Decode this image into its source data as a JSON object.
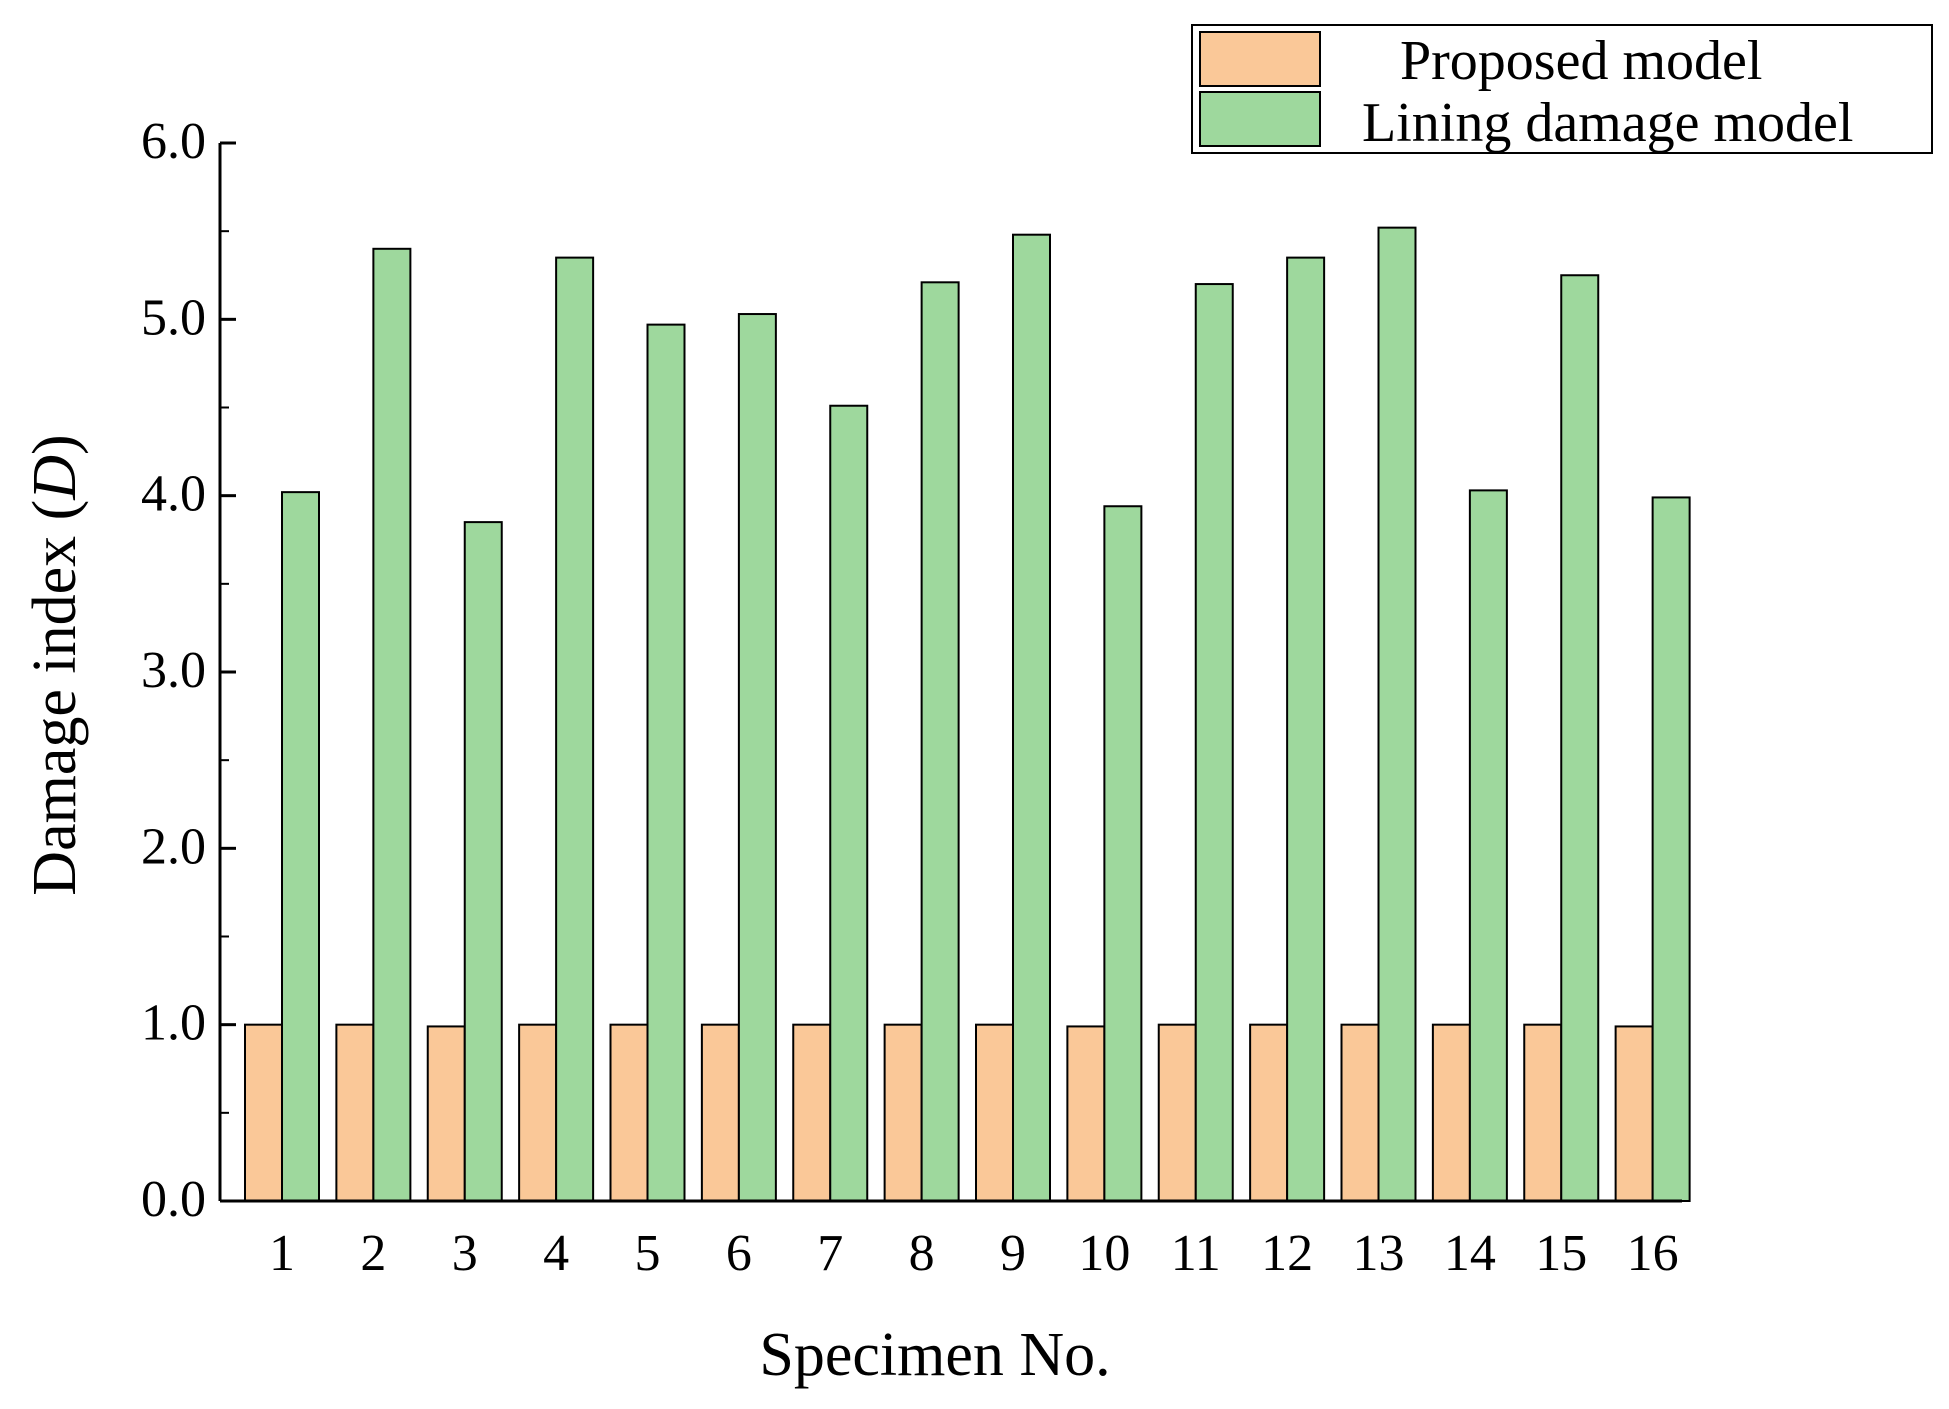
{
  "chart_data": {
    "type": "bar",
    "xlabel": "Specimen No.",
    "ylabel": {
      "prefix": "Damage index (",
      "symbol": "D",
      "suffix": ")"
    },
    "ylim": [
      0,
      6
    ],
    "yticks": [
      "0.0",
      "1.0",
      "2.0",
      "3.0",
      "4.0",
      "5.0",
      "6.0"
    ],
    "categories": [
      "1",
      "2",
      "3",
      "4",
      "5",
      "6",
      "7",
      "8",
      "9",
      "10",
      "11",
      "12",
      "13",
      "14",
      "15",
      "16"
    ],
    "series": [
      {
        "name": "Proposed model",
        "color": "#FAC898",
        "values": [
          1.0,
          1.0,
          0.99,
          1.0,
          1.0,
          1.0,
          1.0,
          1.0,
          1.0,
          0.99,
          1.0,
          1.0,
          1.0,
          1.0,
          1.0,
          0.99
        ]
      },
      {
        "name": "Lining damage model",
        "color": "#9ED89D",
        "values": [
          4.02,
          5.4,
          3.85,
          5.35,
          4.97,
          5.03,
          4.51,
          5.21,
          5.48,
          3.94,
          5.2,
          5.35,
          5.52,
          4.03,
          5.25,
          3.99
        ]
      }
    ],
    "grid": false,
    "legend": "top-right"
  }
}
